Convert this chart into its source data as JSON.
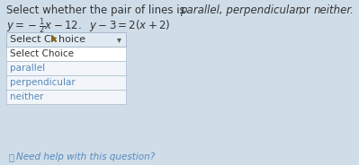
{
  "bg_color": "#cfdde8",
  "title_line1_normal1": "Select whether the pair of lines is ",
  "title_line1_italic": "parallel, perpendicular,",
  "title_line1_normal2": " or ",
  "title_line1_italic2": "neither.",
  "eq_line": "y = −½x−12.  y−3 = 2(x+2)",
  "dropdown_header": "Select C",
  "dropdown_header2": "hoice",
  "choices": [
    "Select Choice",
    "parallel",
    "perpendicular",
    "neither"
  ],
  "footer_icon": "ⓘ",
  "footer_text": "  Need help with this question?",
  "title_fontsize": 8.5,
  "eq_fontsize": 8.5,
  "choice_fontsize": 8.0,
  "footer_fontsize": 7.5,
  "box_facecolor": "#f0f4f8",
  "box_border_color": "#aabbcc",
  "list_facecolor": "#f8fbff",
  "text_dark": "#333333",
  "text_blue": "#5588bb",
  "text_blue_dark": "#336699",
  "cursor_color": "#8B6914",
  "header_bg": "#e0eaf2",
  "dropdown_arrow_color": "#555555"
}
